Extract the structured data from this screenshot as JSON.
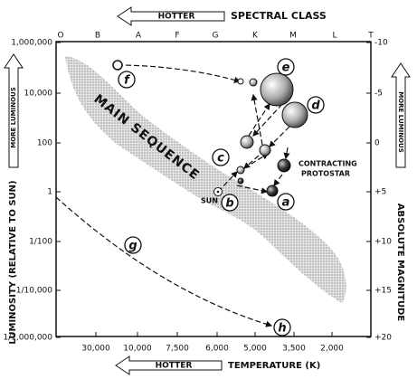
{
  "top_axis": {
    "arrow": "HOTTER",
    "title": "SPECTRAL CLASS",
    "classes": [
      "O",
      "B",
      "A",
      "F",
      "G",
      "K",
      "M",
      "L",
      "T"
    ]
  },
  "bottom_axis": {
    "arrow": "HOTTER",
    "title": "TEMPERATURE (K)",
    "ticks": [
      "30,000",
      "10,000",
      "7,500",
      "6,000",
      "5,000",
      "3,500",
      "2,000"
    ]
  },
  "left_axis": {
    "title": "LUMINOSITY (RELATIVE TO SUN)",
    "arrow": "MORE LUMINOUS",
    "ticks": [
      "1,000,000",
      "10,000",
      "100",
      "1",
      "1/100",
      "1/10,000",
      "1/1,000,000"
    ]
  },
  "right_axis": {
    "title": "ABSOLUTE MAGNITUDE",
    "arrow": "MORE LUMINOUS",
    "ticks": [
      "-10",
      "-5",
      "0",
      "+5",
      "+10",
      "+15",
      "+20"
    ]
  },
  "band_label": "MAIN SEQUENCE",
  "sun_label": "SUN",
  "protostar_label": [
    "CONTRACTING",
    "PROTOSTAR"
  ],
  "stages": [
    "a",
    "b",
    "c",
    "d",
    "e",
    "f",
    "g",
    "h"
  ]
}
